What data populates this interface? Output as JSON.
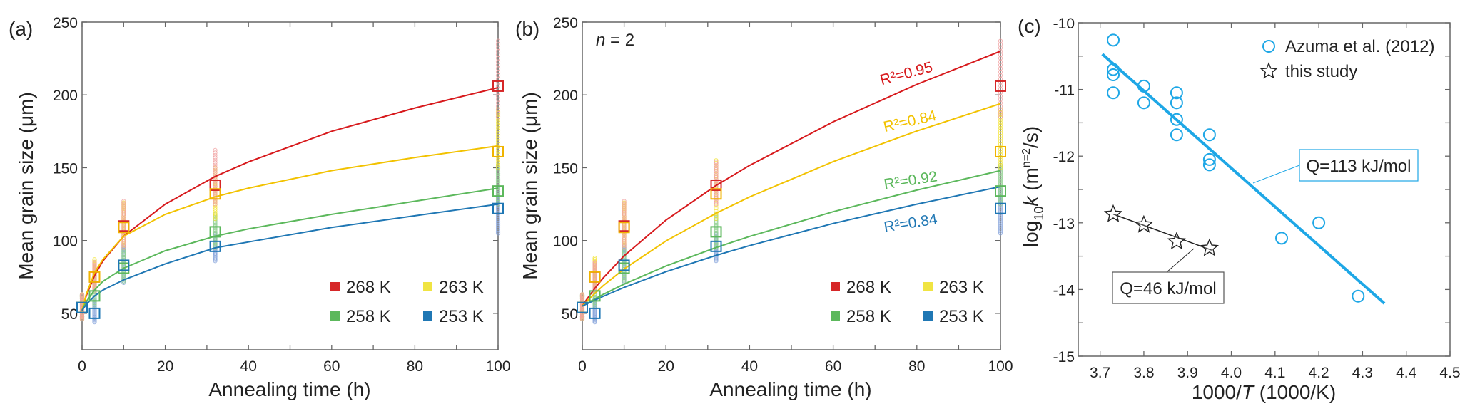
{
  "chart_data": [
    {
      "panel_label": "(a)",
      "type": "scatter+line",
      "xlabel": "Annealing time (h)",
      "ylabel": "Mean grain size (μm)",
      "xlim": [
        0,
        100
      ],
      "ylim": [
        25,
        250
      ],
      "xticks": [
        "0",
        "20",
        "40",
        "60",
        "80",
        "100"
      ],
      "yticks": [
        "50",
        "100",
        "150",
        "200",
        "250"
      ],
      "grid": false,
      "legend_placement": "bottom-right",
      "x": [
        0,
        3,
        10,
        32,
        100
      ],
      "fit_x": [
        0,
        1,
        3,
        5,
        10,
        20,
        32,
        40,
        60,
        80,
        100
      ],
      "series": [
        {
          "name": "268 K",
          "color": "#d62728",
          "fit_color": "#d7191c",
          "dot_color": "#f0a3a3",
          "mean": [
            54,
            75,
            110,
            138,
            206
          ],
          "spread": [
            [
              46,
              63
            ],
            [
              65,
              85
            ],
            [
              95,
              127
            ],
            [
              125,
              162
            ],
            [
              185,
              237
            ]
          ],
          "fit": [
            52,
            62,
            76,
            86,
            103,
            125,
            144,
            154,
            175,
            191,
            205
          ]
        },
        {
          "name": "263 K",
          "color": "#f0b400",
          "fit_color": "#f2c200",
          "dot_color": "#f2e33a",
          "legend_color": "#f0e442",
          "mean": [
            54,
            75,
            109,
            132,
            161
          ],
          "spread": [
            [
              46,
              63
            ],
            [
              68,
              87
            ],
            [
              97,
              126
            ],
            [
              115,
              150
            ],
            [
              150,
              190
            ]
          ],
          "fit": [
            52,
            63,
            78,
            87,
            103,
            118,
            130,
            136,
            148,
            157,
            165
          ]
        },
        {
          "name": "258 K",
          "color": "#5cb85c",
          "fit_color": "#5cb85c",
          "dot_color": "#93d193",
          "mean": [
            54,
            62,
            81,
            106,
            134
          ],
          "spread": [
            [
              46,
              63
            ],
            [
              55,
              78
            ],
            [
              72,
              95
            ],
            [
              95,
              118
            ],
            [
              125,
              152
            ]
          ],
          "fit": [
            52,
            58,
            66,
            72,
            81,
            93,
            103,
            108,
            118,
            127,
            136
          ]
        },
        {
          "name": "253 K",
          "color": "#1f77b4",
          "fit_color": "#1f77b4",
          "dot_color": "#8aa6dc",
          "mean": [
            54,
            50,
            83,
            96,
            122
          ],
          "spread": [
            [
              46,
              63
            ],
            [
              44,
              60
            ],
            [
              71,
              97
            ],
            [
              86,
              105
            ],
            [
              105,
              135
            ]
          ],
          "fit": [
            52,
            56,
            62,
            66,
            73,
            84,
            95,
            99,
            109,
            117,
            125
          ]
        }
      ]
    },
    {
      "panel_label": "(b)",
      "type": "scatter+line",
      "annotation": {
        "var": "n",
        "rest": " = 2"
      },
      "xlabel": "Annealing time (h)",
      "ylabel": "Mean grain size (μm)",
      "xlim": [
        0,
        100
      ],
      "ylim": [
        25,
        250
      ],
      "xticks": [
        "0",
        "20",
        "40",
        "60",
        "80",
        "100"
      ],
      "yticks": [
        "50",
        "100",
        "150",
        "200",
        "250"
      ],
      "grid": false,
      "legend_placement": "bottom-right",
      "x": [
        0,
        3,
        10,
        32,
        100
      ],
      "fit_x": [
        0,
        1,
        3,
        5,
        10,
        20,
        32,
        40,
        60,
        80,
        100
      ],
      "series": [
        {
          "name": "268 K",
          "r2": "R²=0.95",
          "color": "#d62728",
          "fit_color": "#d7191c",
          "dot_color": "#f0a3a3",
          "mean": [
            54,
            75,
            110,
            138,
            206
          ],
          "spread": [
            [
              46,
              63
            ],
            [
              65,
              85
            ],
            [
              95,
              127
            ],
            [
              125,
              154
            ],
            [
              185,
              237
            ]
          ],
          "fit": [
            55,
            59.4,
            67.2,
            74.3,
            89.5,
            114.0,
            137.8,
            151.6,
            181.5,
            207.2,
            230
          ]
        },
        {
          "name": "263 K",
          "r2": "R²=0.84",
          "color": "#f0b400",
          "fit_color": "#f2c200",
          "dot_color": "#f2e33a",
          "legend_color": "#f0e442",
          "mean": [
            54,
            75,
            109,
            132,
            161
          ],
          "spread": [
            [
              46,
              63
            ],
            [
              68,
              88
            ],
            [
              97,
              126
            ],
            [
              115,
              155
            ],
            [
              150,
              190
            ]
          ],
          "fit": [
            55,
            58.1,
            63.7,
            69.0,
            80.5,
            99.7,
            118.7,
            129.9,
            154.2,
            175.2,
            194
          ]
        },
        {
          "name": "258 K",
          "r2": "R²=0.92",
          "color": "#5cb85c",
          "fit_color": "#5cb85c",
          "dot_color": "#93d193",
          "mean": [
            54,
            62,
            81,
            106,
            134
          ],
          "spread": [
            [
              46,
              63
            ],
            [
              55,
              78
            ],
            [
              72,
              95
            ],
            [
              95,
              118
            ],
            [
              125,
              152
            ]
          ],
          "fit": [
            55,
            56.7,
            59.9,
            63.0,
            70.1,
            82.5,
            95.2,
            102.8,
            119.8,
            134.6,
            148
          ]
        },
        {
          "name": "253 K",
          "r2": "R²=0.84",
          "color": "#1f77b4",
          "fit_color": "#1f77b4",
          "dot_color": "#8aa6dc",
          "mean": [
            54,
            50,
            83,
            96,
            122
          ],
          "spread": [
            [
              46,
              63
            ],
            [
              44,
              60
            ],
            [
              71,
              97
            ],
            [
              86,
              105
            ],
            [
              105,
              135
            ]
          ],
          "fit": [
            55,
            56.4,
            59.1,
            61.7,
            67.8,
            78.6,
            89.8,
            96.5,
            111.7,
            125.0,
            137
          ]
        }
      ]
    },
    {
      "panel_label": "(c)",
      "type": "scatter+line",
      "xlabel": {
        "pre": "1000/",
        "var": "T",
        "post": " (1000/K)"
      },
      "ylabel": {
        "base": "log",
        "sub": "10",
        "var": "k",
        "pre": " (m",
        "sup": "n=2",
        "post": "/s)"
      },
      "xlim": [
        3.65,
        4.5
      ],
      "ylim": [
        -15,
        -10
      ],
      "xticks": [
        "3.7",
        "3.8",
        "3.9",
        "4.0",
        "4.1",
        "4.2",
        "4.3",
        "4.4",
        "4.5"
      ],
      "yticks": [
        "-10",
        "-11",
        "-12",
        "-13",
        "-14",
        "-15"
      ],
      "grid": false,
      "legend_placement": "top-right",
      "series": [
        {
          "name": "Azuma et al. (2012)",
          "marker": "circle",
          "color": "#1ea7e6",
          "points": [
            [
              3.73,
              -10.26
            ],
            [
              3.73,
              -10.7
            ],
            [
              3.73,
              -10.78
            ],
            [
              3.73,
              -11.05
            ],
            [
              3.8,
              -10.95
            ],
            [
              3.8,
              -11.2
            ],
            [
              3.875,
              -11.05
            ],
            [
              3.875,
              -11.2
            ],
            [
              3.875,
              -11.45
            ],
            [
              3.875,
              -11.68
            ],
            [
              3.95,
              -11.68
            ],
            [
              3.95,
              -12.05
            ],
            [
              3.95,
              -12.13
            ],
            [
              4.115,
              -13.23
            ],
            [
              4.2,
              -13.0
            ],
            [
              4.29,
              -14.1
            ]
          ],
          "fit_line": [
            [
              3.705,
              -10.47
            ],
            [
              4.35,
              -14.21
            ]
          ],
          "fit_label": "Q=113 kJ/mol"
        },
        {
          "name": "this study",
          "marker": "star",
          "color": "#222222",
          "points": [
            [
              3.73,
              -12.87
            ],
            [
              3.8,
              -13.03
            ],
            [
              3.875,
              -13.28
            ],
            [
              3.95,
              -13.38
            ]
          ],
          "fit_line": [
            [
              3.73,
              -12.87
            ],
            [
              3.955,
              -13.41
            ]
          ],
          "fit_label": "Q=46 kJ/mol"
        }
      ]
    }
  ]
}
